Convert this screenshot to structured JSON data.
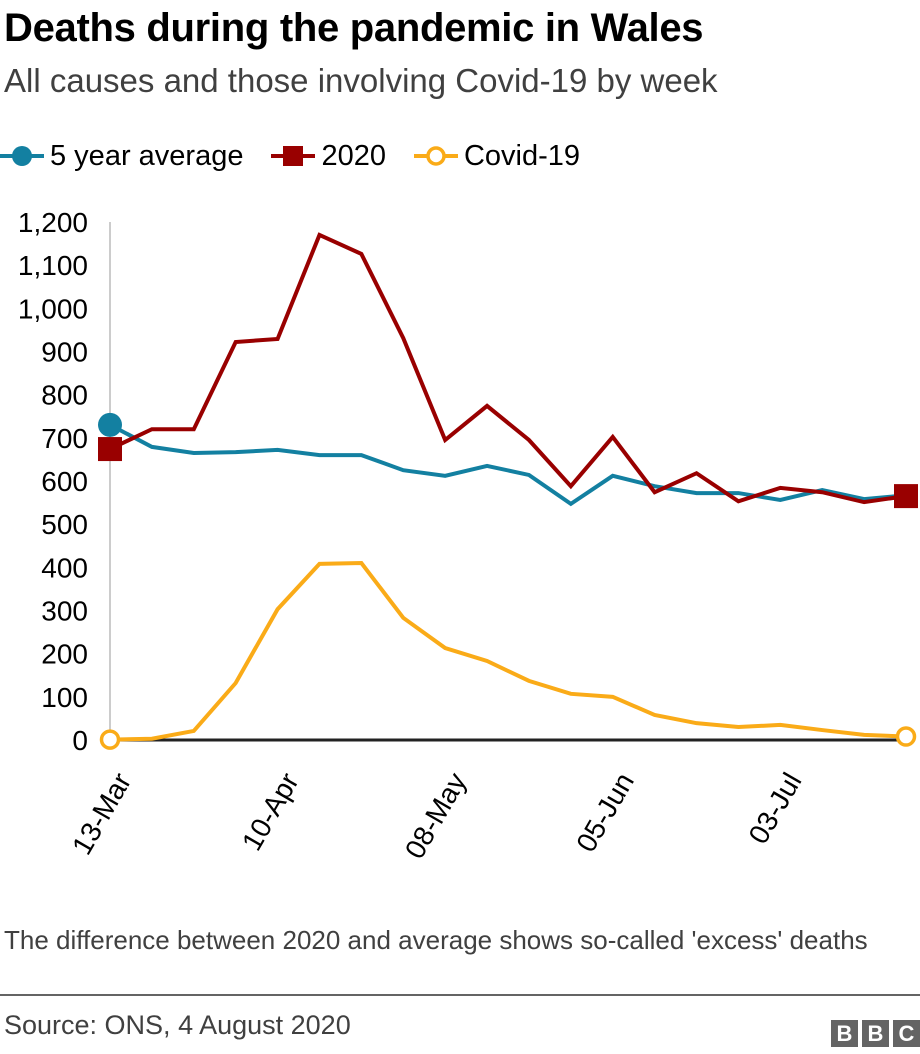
{
  "header": {
    "title": "Deaths during the pandemic in Wales",
    "subtitle": "All causes and those involving Covid-19 by week"
  },
  "legend": [
    {
      "label": "5 year average",
      "marker": "filled-circle",
      "color": "#1380A1"
    },
    {
      "label": "2020",
      "marker": "filled-square",
      "color": "#990000"
    },
    {
      "label": "Covid-19",
      "marker": "hollow-circle",
      "color": "#FAAB18"
    }
  ],
  "chart_data": {
    "type": "line",
    "title": "Deaths during the pandemic in Wales",
    "subtitle": "All causes and those involving Covid-19 by week",
    "xlabel": "",
    "ylabel": "",
    "ylim": [
      0,
      1200
    ],
    "yticks": [
      0,
      100,
      200,
      300,
      400,
      500,
      600,
      700,
      800,
      900,
      1000,
      1100,
      1200
    ],
    "ytick_labels": [
      "0",
      "100",
      "200",
      "300",
      "400",
      "500",
      "600",
      "700",
      "800",
      "900",
      "1,000",
      "1,100",
      "1,200"
    ],
    "x": [
      "13-Mar",
      "20-Mar",
      "27-Mar",
      "03-Apr",
      "10-Apr",
      "17-Apr",
      "24-Apr",
      "01-May",
      "08-May",
      "15-May",
      "22-May",
      "29-May",
      "05-Jun",
      "12-Jun",
      "19-Jun",
      "26-Jun",
      "03-Jul",
      "10-Jul",
      "17-Jul",
      "24-Jul"
    ],
    "xtick_labels": [
      {
        "index": 0,
        "label": "13-Mar"
      },
      {
        "index": 4,
        "label": "10-Apr"
      },
      {
        "index": 8,
        "label": "08-May"
      },
      {
        "index": 12,
        "label": "05-Jun"
      },
      {
        "index": 16,
        "label": "03-Jul"
      }
    ],
    "grid": false,
    "legend_position": "top-left",
    "series": [
      {
        "name": "5 year average",
        "color": "#1380A1",
        "marker": "filled-circle",
        "values": [
          730,
          679,
          665,
          667,
          672,
          660,
          660,
          625,
          612,
          635,
          614,
          547,
          612,
          588,
          572,
          572,
          556,
          579,
          558,
          567
        ]
      },
      {
        "name": "2020",
        "color": "#990000",
        "marker": "filled-square",
        "values": [
          674,
          720,
          720,
          922,
          929,
          1170,
          1126,
          931,
          695,
          774,
          695,
          588,
          702,
          574,
          618,
          553,
          584,
          574,
          551,
          565
        ]
      },
      {
        "name": "Covid-19",
        "color": "#FAAB18",
        "marker": "hollow-circle",
        "values": [
          1,
          3,
          21,
          132,
          303,
          408,
          410,
          283,
          213,
          183,
          137,
          107,
          100,
          58,
          39,
          30,
          35,
          23,
          12,
          8
        ]
      }
    ]
  },
  "footer": {
    "note": "The difference between 2020 and average shows so-called 'excess' deaths",
    "source": "Source: ONS, 4 August 2020",
    "logo_letters": [
      "B",
      "B",
      "C"
    ]
  }
}
